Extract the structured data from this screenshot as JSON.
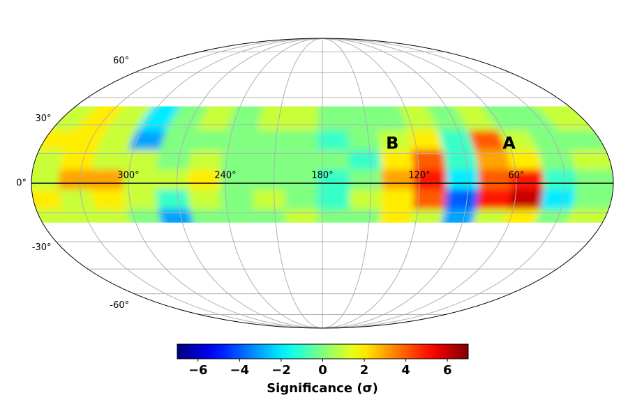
{
  "chart_data": {
    "type": "mollweide-heatmap",
    "lon_bins": [
      360,
      340,
      320,
      300,
      280,
      260,
      240,
      220,
      200,
      180,
      160,
      140,
      120,
      100,
      80,
      60,
      40,
      20,
      0
    ],
    "lat_bins": [
      -20,
      -10,
      0,
      10,
      20,
      30,
      40
    ],
    "values": [
      [
        1,
        1,
        1,
        0,
        -3,
        0,
        0,
        0,
        1,
        0,
        0,
        2,
        1,
        -3,
        1,
        2,
        0,
        1
      ],
      [
        2,
        1,
        2,
        1,
        -1,
        1,
        0,
        1,
        0,
        -1,
        1,
        2,
        4,
        -4,
        5,
        6,
        -2,
        0
      ],
      [
        1,
        3,
        3,
        1,
        1,
        2,
        0,
        0,
        0,
        -1,
        0,
        3,
        5,
        -2,
        4,
        5,
        -1,
        0
      ],
      [
        1,
        2,
        1,
        1,
        0,
        1,
        0,
        0,
        0,
        0,
        -1,
        2,
        4,
        -1,
        3,
        2,
        0,
        1
      ],
      [
        2,
        2,
        1,
        -3,
        0,
        0,
        0,
        0,
        0,
        -1,
        0,
        1,
        2,
        -1,
        4,
        1,
        0,
        0
      ],
      [
        1,
        2,
        1,
        -2,
        0,
        1,
        0,
        1,
        1,
        0,
        0,
        0,
        1,
        0,
        1,
        0,
        0,
        1
      ]
    ],
    "lon_grid": [
      30,
      60,
      90,
      120,
      150,
      180,
      210,
      240,
      270,
      300,
      330
    ],
    "lat_grid": [
      -75,
      -60,
      -45,
      -30,
      -15,
      15,
      30,
      45,
      60,
      75
    ],
    "xticks": [
      {
        "value": 300,
        "label": "300°"
      },
      {
        "value": 240,
        "label": "240°"
      },
      {
        "value": 180,
        "label": "180°"
      },
      {
        "value": 120,
        "label": "120°"
      },
      {
        "value": 60,
        "label": "60°"
      }
    ],
    "yticks": [
      {
        "value": 60,
        "label": "60°"
      },
      {
        "value": 30,
        "label": "30°"
      },
      {
        "value": 0,
        "label": "0°"
      },
      {
        "value": -30,
        "label": "-30°"
      },
      {
        "value": -60,
        "label": "-60°"
      }
    ],
    "annotations": [
      {
        "text": "A",
        "lon": 60,
        "lat": 20
      },
      {
        "text": "B",
        "lon": 135,
        "lat": 20
      }
    ],
    "colormap": "jet",
    "clim": [
      -7,
      7
    ],
    "cticks": [
      {
        "value": -6,
        "label": "−6"
      },
      {
        "value": -4,
        "label": "−4"
      },
      {
        "value": -2,
        "label": "−2"
      },
      0,
      2,
      4,
      6
    ],
    "colorbar_label": "Significance (σ)"
  }
}
